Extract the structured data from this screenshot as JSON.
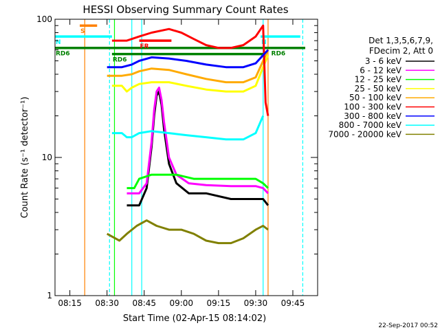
{
  "chart_data": {
    "type": "line",
    "title": "HESSI Observing Summary Count Rates",
    "xlabel": "Start Time (02-Apr-15 08:14:02)",
    "ylabel": "Count Rate (s⁻¹ detector⁻¹)",
    "y_scale": "log",
    "ylim": [
      1,
      100
    ],
    "xlim": [
      "08:09",
      "09:55"
    ],
    "x_ticks": [
      "08:15",
      "08:30",
      "08:45",
      "09:00",
      "09:15",
      "09:30",
      "09:45"
    ],
    "y_ticks": [
      "1",
      "10",
      "100"
    ],
    "legend_header": [
      "Det 1,3,5,6,7,9,",
      "FDecim 2, Att 0"
    ],
    "legend_position": "right",
    "footer": "22-Sep-2017 00:52",
    "series": [
      {
        "name": "3 - 6 keV",
        "color": "#000000",
        "x": [
          "08:38",
          "08:41",
          "08:43",
          "08:46",
          "08:48",
          "08:49",
          "08:50",
          "08:51",
          "08:52",
          "08:53",
          "08:55",
          "08:58",
          "09:03",
          "09:10",
          "09:20",
          "09:30",
          "09:33",
          "09:35"
        ],
        "y": [
          4.5,
          4.5,
          4.5,
          6,
          12,
          20,
          28,
          30,
          24,
          16,
          9,
          6.5,
          5.5,
          5.5,
          5,
          5,
          5,
          4.5
        ]
      },
      {
        "name": "6 - 12 keV",
        "color": "#ff00ff",
        "x": [
          "08:38",
          "08:41",
          "08:43",
          "08:46",
          "08:48",
          "08:49",
          "08:50",
          "08:51",
          "08:52",
          "08:53",
          "08:55",
          "08:58",
          "09:03",
          "09:10",
          "09:20",
          "09:30",
          "09:33",
          "09:35"
        ],
        "y": [
          5.5,
          5.5,
          5.5,
          6.5,
          13,
          22,
          30,
          32,
          26,
          18,
          10,
          7.5,
          6.5,
          6.3,
          6.2,
          6.2,
          6,
          5.5
        ]
      },
      {
        "name": "12 - 25 keV",
        "color": "#00ff00",
        "x": [
          "08:38",
          "08:41",
          "08:43",
          "08:48",
          "08:52",
          "08:58",
          "09:05",
          "09:15",
          "09:25",
          "09:30",
          "09:33",
          "09:35"
        ],
        "y": [
          6,
          6,
          7,
          7.5,
          7.5,
          7.5,
          7,
          7,
          7,
          7,
          6.5,
          6
        ]
      },
      {
        "name": "25 - 50 keV",
        "color": "#ffff00",
        "x": [
          "08:32",
          "08:36",
          "08:38",
          "08:40",
          "08:43",
          "08:48",
          "08:55",
          "09:02",
          "09:10",
          "09:18",
          "09:25",
          "09:30",
          "09:33",
          "09:35"
        ],
        "y": [
          33,
          33,
          30,
          32,
          34,
          35,
          35,
          33,
          31,
          30,
          30,
          33,
          45,
          55
        ]
      },
      {
        "name": "50 - 100 keV",
        "color": "#ffaa00",
        "x": [
          "08:30",
          "08:32",
          "08:36",
          "08:40",
          "08:43",
          "08:48",
          "08:55",
          "09:02",
          "09:10",
          "09:18",
          "09:25",
          "09:30",
          "09:33",
          "09:35"
        ],
        "y": [
          39,
          39,
          39,
          40,
          42,
          44,
          43,
          40,
          37,
          35,
          35,
          38,
          50,
          60
        ]
      },
      {
        "name": "100 - 300 keV",
        "color": "#ff0000",
        "x": [
          "08:32",
          "08:36",
          "08:38",
          "08:40",
          "08:43",
          "08:48",
          "08:55",
          "09:00",
          "09:05",
          "09:10",
          "09:15",
          "09:20",
          "09:25",
          "09:30",
          "09:33",
          "09:34",
          "09:35"
        ],
        "y": [
          70,
          70,
          70,
          72,
          75,
          80,
          85,
          80,
          72,
          65,
          62,
          62,
          65,
          75,
          90,
          25,
          20
        ]
      },
      {
        "name": "300 - 800 keV",
        "color": "#0000ff",
        "x": [
          "08:30",
          "08:32",
          "08:36",
          "08:40",
          "08:43",
          "08:48",
          "08:55",
          "09:02",
          "09:10",
          "09:18",
          "09:25",
          "09:30",
          "09:33",
          "09:35"
        ],
        "y": [
          45,
          45,
          45,
          47,
          50,
          53,
          52,
          50,
          47,
          45,
          45,
          48,
          55,
          60
        ]
      },
      {
        "name": "800 - 7000 keV",
        "color": "#00ffff",
        "x": [
          "08:32",
          "08:36",
          "08:38",
          "08:40",
          "08:43",
          "08:48",
          "08:55",
          "09:02",
          "09:10",
          "09:18",
          "09:25",
          "09:30",
          "09:33"
        ],
        "y": [
          15,
          15,
          14,
          14,
          15,
          15.5,
          15,
          14.5,
          14,
          13.5,
          13.5,
          15,
          20
        ]
      },
      {
        "name": "7000 - 20000 keV",
        "color": "#808000",
        "x": [
          "08:30",
          "08:35",
          "08:38",
          "08:42",
          "08:46",
          "08:50",
          "08:55",
          "09:00",
          "09:05",
          "09:10",
          "09:15",
          "09:20",
          "09:25",
          "09:30",
          "09:33",
          "09:35"
        ],
        "y": [
          2.8,
          2.5,
          2.8,
          3.2,
          3.5,
          3.2,
          3.0,
          3.0,
          2.8,
          2.5,
          2.4,
          2.4,
          2.6,
          3.0,
          3.2,
          3.0
        ]
      }
    ],
    "annotations": {
      "flags": [
        {
          "label": "S",
          "color": "#ff8000",
          "start": "08:19",
          "end": "08:26",
          "value": 90
        },
        {
          "label": "N",
          "color": "#00ffff",
          "start": "08:09",
          "end": "08:32",
          "value": 75
        },
        {
          "label": "N",
          "color": "#00ffff",
          "start": "09:32",
          "end": "09:48",
          "value": 75
        },
        {
          "label": "RD6",
          "color": "#008000",
          "start": "08:09",
          "end": "09:36",
          "value": 62
        },
        {
          "label": "RD6",
          "color": "#008000",
          "start": "09:36",
          "end": "09:50",
          "value": 62
        },
        {
          "label": "RD6",
          "color": "#008000",
          "start": "08:32",
          "end": "09:34",
          "value": 56
        },
        {
          "label": "FR",
          "color": "#ff0000",
          "start": "08:43",
          "end": "08:56",
          "value": 70
        }
      ],
      "vlines": [
        {
          "time": "08:21",
          "color": "#ff8000",
          "dashed": false
        },
        {
          "time": "08:31",
          "color": "#00ffff",
          "dashed": true
        },
        {
          "time": "08:33",
          "color": "#00ff00",
          "dashed": false
        },
        {
          "time": "08:40",
          "color": "#00ffff",
          "dashed": false
        },
        {
          "time": "08:44",
          "color": "#00ffff",
          "dashed": false
        },
        {
          "time": "09:33",
          "color": "#00ffff",
          "dashed": false
        },
        {
          "time": "09:35",
          "color": "#ff8000",
          "dashed": false
        },
        {
          "time": "09:49",
          "color": "#00ffff",
          "dashed": true
        }
      ]
    }
  }
}
